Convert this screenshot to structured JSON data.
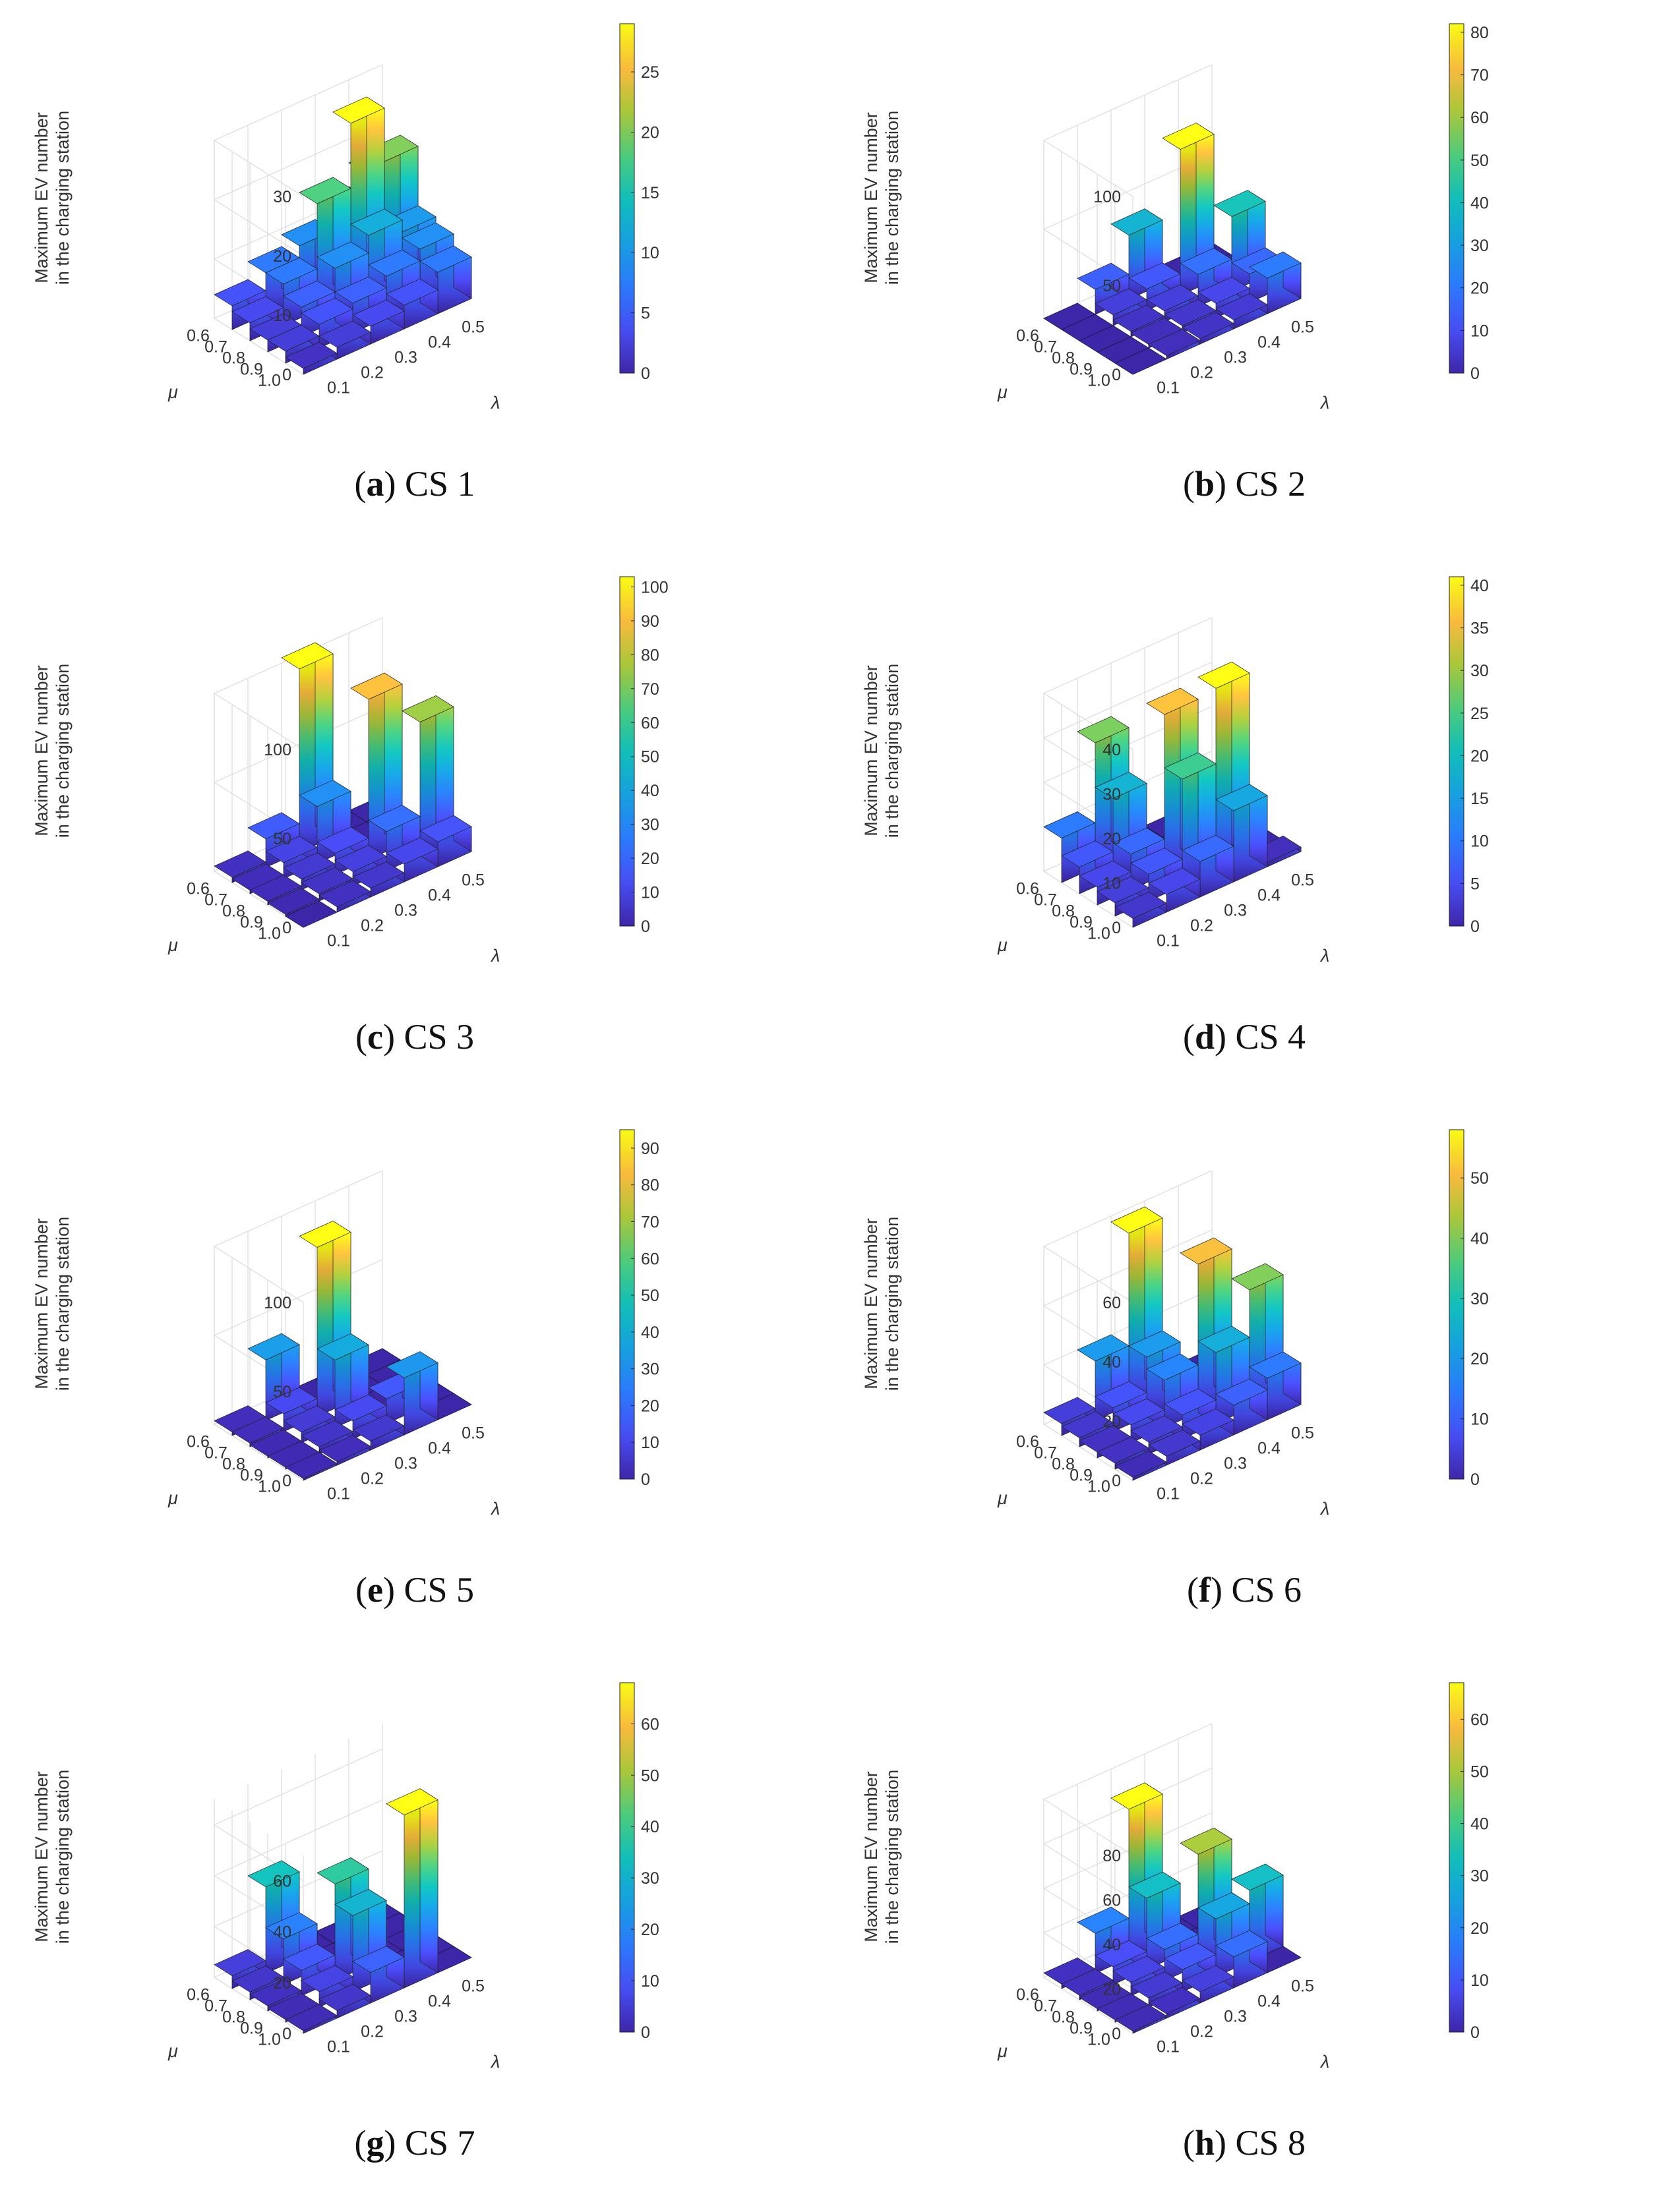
{
  "figure": {
    "z_label_line1": "Maximum EV number",
    "z_label_line2": "in the charging station",
    "mu_symbol": "μ",
    "lambda_symbol": "λ"
  },
  "chart_data": [
    {
      "type": "bar3d",
      "title": "CS 1",
      "caption_letter": "a",
      "caption_text": "CS 1",
      "xlabel": "λ",
      "ylabel": "μ",
      "zlabel": "Maximum EV number in the charging station",
      "lambda": [
        "0.1",
        "0.2",
        "0.3",
        "0.4",
        "0.5"
      ],
      "mu": [
        "0.6",
        "0.7",
        "0.8",
        "0.9",
        "1.0"
      ],
      "values": [
        [
          4,
          7,
          9,
          12,
          16
        ],
        [
          3,
          7,
          18,
          29,
          20
        ],
        [
          2,
          5,
          9,
          12,
          10
        ],
        [
          2,
          4,
          5,
          7,
          9
        ],
        [
          1,
          2,
          3,
          4,
          7
        ]
      ],
      "zlim": [
        0,
        30
      ],
      "zticks": [
        0,
        10,
        20,
        30
      ],
      "colorbar_max": 29,
      "colorbar_ticks": [
        0,
        5,
        10,
        15,
        20,
        25
      ]
    },
    {
      "type": "bar3d",
      "title": "CS 2",
      "caption_letter": "b",
      "caption_text": "CS 2",
      "xlabel": "λ",
      "ylabel": "μ",
      "zlabel": "Maximum EV number in the charging station",
      "lambda": [
        "0.1",
        "0.2",
        "0.3",
        "0.4",
        "0.5"
      ],
      "mu": [
        "0.6",
        "0.7",
        "0.8",
        "0.9",
        "1.0"
      ],
      "values": [
        [
          0,
          14,
          36,
          0,
          0
        ],
        [
          0,
          6,
          12,
          82,
          0
        ],
        [
          0,
          3,
          6,
          18,
          42
        ],
        [
          0,
          2,
          4,
          8,
          16
        ],
        [
          0,
          2,
          3,
          5,
          20
        ]
      ],
      "zlim": [
        0,
        100
      ],
      "zticks": [
        0,
        50,
        100
      ],
      "colorbar_max": 82,
      "colorbar_ticks": [
        0,
        10,
        20,
        30,
        40,
        50,
        60,
        70,
        80
      ]
    },
    {
      "type": "bar3d",
      "title": "CS 3",
      "caption_letter": "c",
      "caption_text": "CS 3",
      "xlabel": "λ",
      "ylabel": "μ",
      "zlabel": "Maximum EV number in the charging station",
      "lambda": [
        "0.1",
        "0.2",
        "0.3",
        "0.4",
        "0.5"
      ],
      "mu": [
        "0.6",
        "0.7",
        "0.8",
        "0.9",
        "1.0"
      ],
      "values": [
        [
          3,
          16,
          103,
          0,
          0
        ],
        [
          2,
          9,
          32,
          0,
          0
        ],
        [
          2,
          6,
          12,
          90,
          0
        ],
        [
          1,
          4,
          8,
          22,
          75
        ],
        [
          0,
          3,
          5,
          10,
          14
        ]
      ],
      "zlim": [
        0,
        100
      ],
      "zticks": [
        0,
        50,
        100
      ],
      "colorbar_max": 103,
      "colorbar_ticks": [
        0,
        10,
        20,
        30,
        40,
        50,
        60,
        70,
        80,
        90,
        100
      ]
    },
    {
      "type": "bar3d",
      "title": "CS 4",
      "caption_letter": "d",
      "caption_text": "CS 4",
      "xlabel": "λ",
      "ylabel": "μ",
      "zlabel": "Maximum EV number in the charging station",
      "lambda": [
        "0.1",
        "0.2",
        "0.3",
        "0.4",
        "0.5"
      ],
      "mu": [
        "0.6",
        "0.7",
        "0.8",
        "0.9",
        "1.0"
      ],
      "values": [
        [
          10,
          28,
          0,
          0,
          0
        ],
        [
          6,
          18,
          0,
          0,
          0
        ],
        [
          4,
          8,
          36,
          0,
          0
        ],
        [
          3,
          6,
          24,
          41,
          0
        ],
        [
          2,
          4,
          8,
          16,
          1
        ]
      ],
      "zlim": [
        0,
        40
      ],
      "zticks": [
        0,
        10,
        20,
        30,
        40
      ],
      "colorbar_max": 41,
      "colorbar_ticks": [
        0,
        5,
        10,
        15,
        20,
        25,
        30,
        35,
        40
      ]
    },
    {
      "type": "bar3d",
      "title": "CS 5",
      "caption_letter": "e",
      "caption_text": "CS 5",
      "xlabel": "λ",
      "ylabel": "μ",
      "zlabel": "Maximum EV number in the charging station",
      "lambda": [
        "0.1",
        "0.2",
        "0.3",
        "0.4",
        "0.5"
      ],
      "mu": [
        "0.6",
        "0.7",
        "0.8",
        "0.9",
        "1.0"
      ],
      "values": [
        [
          2,
          34,
          0,
          0,
          0
        ],
        [
          2,
          10,
          95,
          0,
          0
        ],
        [
          1,
          6,
          38,
          0,
          0
        ],
        [
          1,
          4,
          10,
          14,
          0
        ],
        [
          1,
          2,
          5,
          32,
          0
        ]
      ],
      "zlim": [
        0,
        100
      ],
      "zticks": [
        0,
        50,
        100
      ],
      "colorbar_max": 95,
      "colorbar_ticks": [
        0,
        10,
        20,
        30,
        40,
        50,
        60,
        70,
        80,
        90
      ]
    },
    {
      "type": "bar3d",
      "title": "CS 6",
      "caption_letter": "f",
      "caption_text": "CS 6",
      "xlabel": "λ",
      "ylabel": "μ",
      "zlabel": "Maximum EV number in the charging station",
      "lambda": [
        "0.1",
        "0.2",
        "0.3",
        "0.4",
        "0.5"
      ],
      "mu": [
        "0.6",
        "0.7",
        "0.8",
        "0.9",
        "1.0"
      ],
      "values": [
        [
          4,
          20,
          58,
          0,
          0
        ],
        [
          3,
          8,
          20,
          0,
          0
        ],
        [
          2,
          6,
          16,
          50,
          0
        ],
        [
          2,
          4,
          8,
          24,
          40
        ],
        [
          1,
          3,
          5,
          10,
          14
        ]
      ],
      "zlim": [
        0,
        60
      ],
      "zticks": [
        0,
        20,
        40,
        60
      ],
      "colorbar_max": 58,
      "colorbar_ticks": [
        0,
        10,
        20,
        30,
        40,
        50
      ]
    },
    {
      "type": "bar3d",
      "title": "CS 7",
      "caption_letter": "g",
      "caption_text": "CS 7",
      "xlabel": "λ",
      "ylabel": "μ",
      "zlabel": "Maximum EV number in the charging station",
      "lambda": [
        "0.1",
        "0.2",
        "0.3",
        "0.4",
        "0.5"
      ],
      "mu": [
        "0.6",
        "0.7",
        "0.8",
        "0.9",
        "1.0"
      ],
      "values": [
        [
          5,
          34,
          0,
          0,
          0
        ],
        [
          3,
          18,
          0,
          0,
          0
        ],
        [
          2,
          10,
          38,
          0,
          0
        ],
        [
          1,
          6,
          30,
          0,
          0
        ],
        [
          1,
          3,
          12,
          68,
          0
        ]
      ],
      "zlim": [
        0,
        70
      ],
      "zticks": [
        0,
        20,
        40,
        60
      ],
      "colorbar_max": 68,
      "colorbar_ticks": [
        0,
        10,
        20,
        30,
        40,
        50,
        60
      ]
    },
    {
      "type": "bar3d",
      "title": "CS 8",
      "caption_letter": "h",
      "caption_text": "CS 8",
      "xlabel": "λ",
      "ylabel": "μ",
      "zlabel": "Maximum EV number in the charging station",
      "lambda": [
        "0.1",
        "0.2",
        "0.3",
        "0.4",
        "0.5"
      ],
      "mu": [
        "0.6",
        "0.7",
        "0.8",
        "0.9",
        "1.0"
      ],
      "values": [
        [
          2,
          18,
          67,
          0,
          0
        ],
        [
          2,
          8,
          32,
          0,
          0
        ],
        [
          1,
          6,
          14,
          50,
          0
        ],
        [
          1,
          4,
          10,
          26,
          32
        ],
        [
          1,
          2,
          5,
          14,
          0
        ]
      ],
      "zlim": [
        0,
        80
      ],
      "zticks": [
        0,
        20,
        40,
        60,
        80
      ],
      "colorbar_max": 67,
      "colorbar_ticks": [
        0,
        10,
        20,
        30,
        40,
        50,
        60
      ]
    }
  ]
}
